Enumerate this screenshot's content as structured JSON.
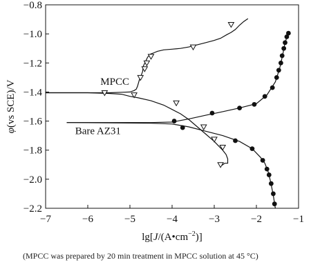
{
  "chart_data": {
    "type": "line",
    "title": "",
    "xlabel_parts": [
      "lg[",
      "J",
      "/(A•cm",
      "−2",
      ")]"
    ],
    "ylabel_parts": [
      "φ",
      "(vs SCE)/V"
    ],
    "xlim": [
      -7,
      -1
    ],
    "ylim": [
      -2.2,
      -0.8
    ],
    "xticks": [
      -7,
      -6,
      -5,
      -4,
      -3,
      -2,
      -1
    ],
    "xtick_labels": [
      "−7",
      "−6",
      "−5",
      "−4",
      "−3",
      "−2",
      "−1"
    ],
    "yticks": [
      -2.2,
      -2.0,
      -1.8,
      -1.6,
      -1.4,
      -1.2,
      -1.0,
      -0.8
    ],
    "ytick_labels": [
      "−2.2",
      "−2.0",
      "−1.8",
      "−1.6",
      "−1.4",
      "−1.2",
      "−1.0",
      "−0.8"
    ],
    "grid": false,
    "series": [
      {
        "name": "MPCC",
        "marker": "open-triangle-down",
        "color": "#111111",
        "branches": [
          [
            [
              -7.0,
              -1.405
            ],
            [
              -6.0,
              -1.405
            ],
            [
              -5.5,
              -1.405
            ],
            [
              -5.2,
              -1.402
            ],
            [
              -5.0,
              -1.4
            ],
            [
              -4.9,
              -1.39
            ],
            [
              -4.85,
              -1.38
            ],
            [
              -4.82,
              -1.36
            ],
            [
              -4.78,
              -1.32
            ],
            [
              -4.74,
              -1.29
            ],
            [
              -4.7,
              -1.26
            ],
            [
              -4.68,
              -1.22
            ],
            [
              -4.63,
              -1.19
            ],
            [
              -4.58,
              -1.16
            ],
            [
              -4.52,
              -1.14
            ],
            [
              -4.43,
              -1.13
            ],
            [
              -4.35,
              -1.12
            ],
            [
              -4.2,
              -1.11
            ],
            [
              -4.0,
              -1.105
            ],
            [
              -3.8,
              -1.1
            ],
            [
              -3.6,
              -1.09
            ],
            [
              -3.4,
              -1.075
            ],
            [
              -3.2,
              -1.06
            ],
            [
              -3.0,
              -1.045
            ],
            [
              -2.85,
              -1.03
            ],
            [
              -2.7,
              -1.005
            ],
            [
              -2.6,
              -0.99
            ],
            [
              -2.5,
              -0.97
            ],
            [
              -2.4,
              -0.94
            ],
            [
              -2.3,
              -0.915
            ],
            [
              -2.2,
              -0.895
            ]
          ],
          [
            [
              -7.0,
              -1.405
            ],
            [
              -6.5,
              -1.405
            ],
            [
              -6.0,
              -1.405
            ],
            [
              -5.5,
              -1.41
            ],
            [
              -5.2,
              -1.415
            ],
            [
              -5.0,
              -1.43
            ],
            [
              -4.8,
              -1.44
            ],
            [
              -4.5,
              -1.46
            ],
            [
              -4.2,
              -1.49
            ],
            [
              -4.0,
              -1.52
            ],
            [
              -3.8,
              -1.55
            ],
            [
              -3.6,
              -1.59
            ],
            [
              -3.4,
              -1.64
            ],
            [
              -3.2,
              -1.69
            ],
            [
              -3.0,
              -1.74
            ],
            [
              -2.9,
              -1.77
            ],
            [
              -2.8,
              -1.8
            ],
            [
              -2.72,
              -1.83
            ],
            [
              -2.68,
              -1.86
            ],
            [
              -2.68,
              -1.89
            ],
            [
              -2.75,
              -1.89
            ],
            [
              -2.82,
              -1.905
            ],
            [
              -2.88,
              -1.905
            ]
          ]
        ],
        "markers": [
          [
            -5.6,
            -1.405
          ],
          [
            -4.9,
            -1.42
          ],
          [
            -3.9,
            -1.475
          ],
          [
            -4.75,
            -1.3
          ],
          [
            -4.65,
            -1.24
          ],
          [
            -4.6,
            -1.2
          ],
          [
            -4.5,
            -1.155
          ],
          [
            -3.5,
            -1.09
          ],
          [
            -2.6,
            -0.935
          ],
          [
            -3.25,
            -1.64
          ],
          [
            -3.0,
            -1.725
          ],
          [
            -2.8,
            -1.78
          ],
          [
            -2.85,
            -1.9
          ]
        ]
      },
      {
        "name": "Bare AZ31",
        "marker": "filled-circle",
        "color": "#111111",
        "branches": [
          [
            [
              -6.5,
              -1.61
            ],
            [
              -5.5,
              -1.61
            ],
            [
              -4.5,
              -1.61
            ],
            [
              -4.0,
              -1.607
            ],
            [
              -3.6,
              -1.585
            ],
            [
              -3.2,
              -1.56
            ],
            [
              -2.8,
              -1.535
            ],
            [
              -2.4,
              -1.51
            ],
            [
              -2.0,
              -1.48
            ],
            [
              -1.75,
              -1.42
            ],
            [
              -1.55,
              -1.33
            ],
            [
              -1.45,
              -1.24
            ],
            [
              -1.38,
              -1.15
            ],
            [
              -1.32,
              -1.06
            ],
            [
              -1.25,
              -1.0
            ]
          ],
          [
            [
              -6.5,
              -1.61
            ],
            [
              -5.5,
              -1.612
            ],
            [
              -4.5,
              -1.615
            ],
            [
              -4.0,
              -1.62
            ],
            [
              -3.6,
              -1.64
            ],
            [
              -3.2,
              -1.67
            ],
            [
              -2.8,
              -1.7
            ],
            [
              -2.4,
              -1.74
            ],
            [
              -2.1,
              -1.79
            ],
            [
              -1.9,
              -1.85
            ],
            [
              -1.8,
              -1.89
            ],
            [
              -1.72,
              -1.95
            ],
            [
              -1.66,
              -2.02
            ],
            [
              -1.6,
              -2.11
            ],
            [
              -1.55,
              -2.2
            ]
          ]
        ],
        "markers": [
          [
            -3.95,
            -1.6
          ],
          [
            -3.05,
            -1.545
          ],
          [
            -2.4,
            -1.51
          ],
          [
            -2.05,
            -1.485
          ],
          [
            -1.8,
            -1.43
          ],
          [
            -1.62,
            -1.37
          ],
          [
            -1.52,
            -1.3
          ],
          [
            -1.47,
            -1.25
          ],
          [
            -1.42,
            -1.2
          ],
          [
            -1.39,
            -1.15
          ],
          [
            -1.35,
            -1.1
          ],
          [
            -1.32,
            -1.06
          ],
          [
            -1.28,
            -1.02
          ],
          [
            -1.24,
            -0.995
          ],
          [
            -3.75,
            -1.645
          ],
          [
            -2.5,
            -1.735
          ],
          [
            -2.1,
            -1.79
          ],
          [
            -1.85,
            -1.87
          ],
          [
            -1.75,
            -1.93
          ],
          [
            -1.7,
            -1.97
          ],
          [
            -1.65,
            -2.03
          ],
          [
            -1.6,
            -2.1
          ],
          [
            -1.57,
            -2.17
          ]
        ]
      }
    ],
    "annotations": [
      {
        "text": "MPCC",
        "x": -5.7,
        "y": -1.35
      },
      {
        "text": "Bare AZ31",
        "x": -6.3,
        "y": -1.69
      }
    ]
  },
  "caption": "(MPCC was prepared by 20 min treatment in MPCC solution at 45 °C)"
}
